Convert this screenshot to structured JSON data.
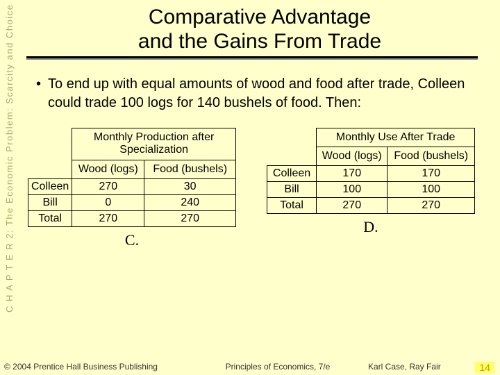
{
  "sidebar": "C H A P T E R  2:  The Economic Problem:  Scarcity and Choice",
  "title_line1": "Comparative Advantage",
  "title_line2": "and the Gains From Trade",
  "bullet": "To end up with equal amounts of wood and food after trade, Colleen could trade 100 logs for 140 bushels of food.  Then:",
  "table_left": {
    "super": "Monthly Production after Specialization",
    "col1": "Wood (logs)",
    "col2": "Food (bushels)",
    "rows": [
      {
        "label": "Colleen",
        "v1": "270",
        "v2": "30"
      },
      {
        "label": "Bill",
        "v1": "0",
        "v2": "240"
      },
      {
        "label": "Total",
        "v1": "270",
        "v2": "270"
      }
    ],
    "caption": "C."
  },
  "table_right": {
    "super": "Monthly Use After Trade",
    "col1": "Wood (logs)",
    "col2": "Food (bushels)",
    "rows": [
      {
        "label": "Colleen",
        "v1": "170",
        "v2": "170"
      },
      {
        "label": "Bill",
        "v1": "100",
        "v2": "100"
      },
      {
        "label": "Total",
        "v1": "270",
        "v2": "270"
      }
    ],
    "caption": "D."
  },
  "footer": {
    "left": "© 2004 Prentice Hall Business Publishing",
    "mid": "Principles of Economics, 7/e",
    "right": "Karl Case, Ray Fair"
  },
  "slide_number": "14",
  "colors": {
    "bg": "#ffffcc",
    "sidebar_text": "#a9a96a",
    "rule": "#000000",
    "slidenum_bg": "#ffff66",
    "slidenum_fg": "#cc9900",
    "cell_border": "#000000"
  }
}
